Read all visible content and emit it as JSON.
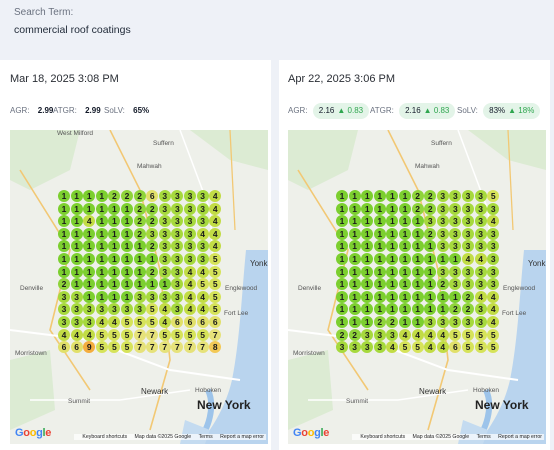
{
  "search": {
    "label": "Search Term:",
    "value": "commercial roof coatings"
  },
  "map_labels": {
    "west_milford": "West Milford",
    "suffern": "Suffern",
    "mahwah": "Mahwah",
    "yonkers": "Yonk",
    "denville": "Denville",
    "englewood": "Englewood",
    "fort_lee": "Fort Lee",
    "morristown": "Morristown",
    "hoboken": "Hoboken",
    "newark": "Newark",
    "summit": "Summit",
    "new_york": "New York"
  },
  "attribution": {
    "shortcuts": "Keyboard shortcuts",
    "mapdata": "Map data ©2025 Google",
    "terms": "Terms",
    "report": "Report a map error"
  },
  "google": {
    "g1": "G",
    "o1": "o",
    "o2": "o",
    "g2": "g",
    "l": "l",
    "e": "e"
  },
  "colors": {
    "1": "#7ccf2f",
    "2": "#8fd43a",
    "3": "#a6d93d",
    "4": "#c2dc45",
    "5": "#d6e35a",
    "6": "#e1e06a",
    "7": "#e6e27a",
    "8": "#f3c956",
    "9": "#f4ad3e",
    "pill_bg": "#e3f4e8",
    "delta": "#2fa64f"
  },
  "panels": [
    {
      "date": "Mar 18, 2025 3:08 PM",
      "agr_label": "AGR:",
      "agr": "2.99",
      "agr_delta": "",
      "atgr_label": "ATGR:",
      "atgr": "2.99",
      "atgr_delta": "",
      "solv_label": "SoLV:",
      "solv": "65%",
      "solv_delta": "",
      "grid": [
        "1111222633334",
        "1111112233334",
        "1141112233334",
        "1111112333344",
        "1111111233334",
        "1111111133335",
        "1111111233445",
        "2111111113455",
        "3311113333445",
        "3333333543445",
        "3334455546666",
        "4445557755557",
        "6695557777778"
      ]
    },
    {
      "date": "Apr 22, 2025 3:06 PM",
      "agr_label": "AGR:",
      "agr": "2.16",
      "agr_delta": "▲ 0.83",
      "atgr_label": "ATGR:",
      "atgr": "2.16",
      "atgr_delta": "▲ 0.83",
      "solv_label": "SoLV:",
      "solv": "83%",
      "solv_delta": "▲ 18%",
      "grid": [
        "1111112233335",
        "1111112233333",
        "1111111333334",
        "1111111233333",
        "1111111133333",
        "1111111111443",
        "1111111133333",
        "1111111123333",
        "1111111111244",
        "1111111112234",
        "1112211333334",
        "2233344445555",
        "3333455446555"
      ]
    }
  ]
}
